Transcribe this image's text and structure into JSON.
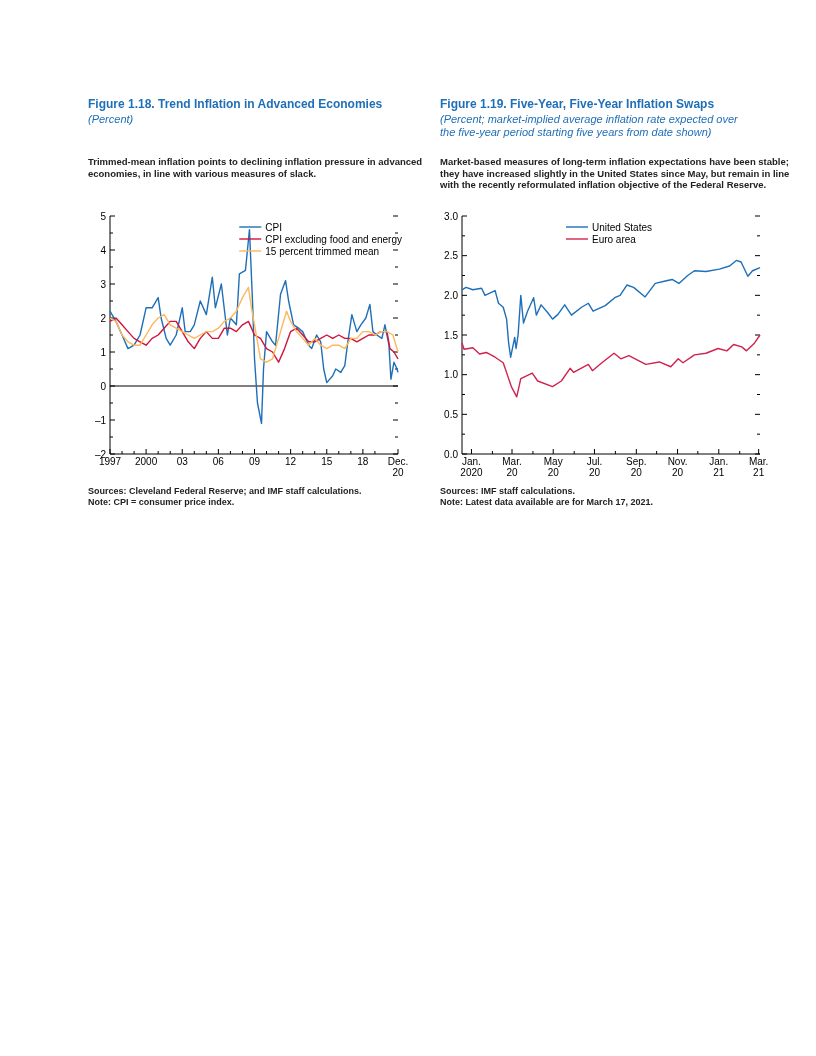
{
  "chart_data": [
    {
      "type": "line",
      "title": "Figure 1.18.  Trend Inflation in Advanced Economies",
      "subtitle": "(Percent)",
      "annotations": [
        "Trimmed-mean inflation points to declining inflation pressure in advanced economies, in line with various measures of slack.",
        "Sources: Cleveland Federal Reserve; and IMF staff calculations.",
        "Note: CPI = consumer price index."
      ],
      "legend": "top right",
      "xlim": [
        "1997-01",
        "2020-12"
      ],
      "xticks": [
        {
          "value": "1997-01",
          "label": "1997"
        },
        {
          "value": "1998-01",
          "label": null
        },
        {
          "value": "1999-01",
          "label": null
        },
        {
          "value": "2000-01",
          "label": "2000"
        },
        {
          "value": "2001-01",
          "label": null
        },
        {
          "value": "2002-01",
          "label": null
        },
        {
          "value": "2003-01",
          "label": "03"
        },
        {
          "value": "2004-01",
          "label": null
        },
        {
          "value": "2005-01",
          "label": null
        },
        {
          "value": "2006-01",
          "label": "06"
        },
        {
          "value": "2007-01",
          "label": null
        },
        {
          "value": "2008-01",
          "label": null
        },
        {
          "value": "2009-01",
          "label": "09"
        },
        {
          "value": "2010-01",
          "label": null
        },
        {
          "value": "2011-01",
          "label": null
        },
        {
          "value": "2012-01",
          "label": "12"
        },
        {
          "value": "2013-01",
          "label": null
        },
        {
          "value": "2014-01",
          "label": null
        },
        {
          "value": "2015-01",
          "label": "15"
        },
        {
          "value": "2016-01",
          "label": null
        },
        {
          "value": "2017-01",
          "label": null
        },
        {
          "value": "2018-01",
          "label": "18"
        },
        {
          "value": "2019-01",
          "label": null
        },
        {
          "value": "2020-12",
          "label": "Dec.\n20"
        }
      ],
      "ylim": [
        -2,
        5
      ],
      "yticks": [
        {
          "value": -2,
          "label": "–2"
        },
        {
          "value": -1.5,
          "label": null
        },
        {
          "value": -1,
          "label": "–1"
        },
        {
          "value": -0.5,
          "label": null
        },
        0,
        {
          "value": 0.5,
          "label": null
        },
        1,
        {
          "value": 1.5,
          "label": null
        },
        2,
        {
          "value": 2.5,
          "label": null
        },
        3,
        {
          "value": 3.5,
          "label": null
        },
        4,
        {
          "value": 4.5,
          "label": null
        },
        5
      ],
      "ref_lines": [
        {
          "axis": "y",
          "value": 0,
          "color": "#000000"
        }
      ],
      "series": [
        {
          "name": "CPI",
          "color": "#1f6fb8",
          "x": [
            "1997-01",
            "1997-07",
            "1998-01",
            "1998-07",
            "1999-01",
            "1999-07",
            "2000-01",
            "2000-07",
            "2001-01",
            "2001-04",
            "2001-09",
            "2002-01",
            "2002-07",
            "2003-01",
            "2003-04",
            "2003-09",
            "2004-01",
            "2004-07",
            "2005-01",
            "2005-07",
            "2005-10",
            "2006-04",
            "2006-10",
            "2007-01",
            "2007-07",
            "2007-10",
            "2008-04",
            "2008-08",
            "2008-11",
            "2009-01",
            "2009-04",
            "2009-08",
            "2009-10",
            "2010-01",
            "2010-07",
            "2010-10",
            "2011-03",
            "2011-08",
            "2011-11",
            "2012-04",
            "2012-09",
            "2013-01",
            "2013-07",
            "2013-10",
            "2014-03",
            "2014-07",
            "2014-10",
            "2015-01",
            "2015-07",
            "2015-10",
            "2016-03",
            "2016-07",
            "2016-10",
            "2017-02",
            "2017-07",
            "2017-11",
            "2018-04",
            "2018-08",
            "2018-11",
            "2019-03",
            "2019-08",
            "2019-11",
            "2020-03",
            "2020-05",
            "2020-08",
            "2020-11",
            "2020-12"
          ],
          "values": [
            2.2,
            1.9,
            1.5,
            1.1,
            1.2,
            1.5,
            2.3,
            2.3,
            2.6,
            2.0,
            1.4,
            1.2,
            1.5,
            2.3,
            1.6,
            1.6,
            1.8,
            2.5,
            2.1,
            3.2,
            2.3,
            3.0,
            1.5,
            2.0,
            1.8,
            3.3,
            3.4,
            4.6,
            2.5,
            0.8,
            -0.5,
            -1.1,
            0.5,
            1.6,
            1.3,
            1.2,
            2.7,
            3.1,
            2.5,
            1.8,
            1.7,
            1.6,
            1.2,
            1.1,
            1.5,
            1.3,
            0.5,
            0.1,
            0.3,
            0.5,
            0.4,
            0.6,
            1.3,
            2.1,
            1.6,
            1.8,
            2.0,
            2.4,
            1.6,
            1.5,
            1.4,
            1.8,
            1.2,
            0.2,
            0.7,
            0.5,
            0.4
          ]
        },
        {
          "name": "CPI excluding food and energy",
          "color": "#d0143c",
          "x": [
            "1997-01",
            "1997-07",
            "1998-01",
            "1998-07",
            "1999-01",
            "1999-07",
            "2000-01",
            "2000-07",
            "2001-01",
            "2001-07",
            "2002-01",
            "2002-07",
            "2003-01",
            "2003-07",
            "2004-01",
            "2004-07",
            "2005-01",
            "2005-07",
            "2006-01",
            "2006-07",
            "2007-01",
            "2007-07",
            "2008-01",
            "2008-07",
            "2009-01",
            "2009-07",
            "2010-01",
            "2010-07",
            "2011-01",
            "2011-07",
            "2012-01",
            "2012-07",
            "2013-01",
            "2013-07",
            "2014-01",
            "2014-07",
            "2015-01",
            "2015-07",
            "2016-01",
            "2016-07",
            "2017-01",
            "2017-07",
            "2018-01",
            "2018-07",
            "2019-01",
            "2019-07",
            "2020-01",
            "2020-04",
            "2020-08",
            "2020-12"
          ],
          "values": [
            1.9,
            2.0,
            1.8,
            1.6,
            1.4,
            1.3,
            1.2,
            1.4,
            1.5,
            1.7,
            1.9,
            1.9,
            1.6,
            1.3,
            1.1,
            1.4,
            1.6,
            1.4,
            1.4,
            1.7,
            1.7,
            1.6,
            1.8,
            1.9,
            1.5,
            1.4,
            1.1,
            1.0,
            0.7,
            1.1,
            1.6,
            1.7,
            1.5,
            1.3,
            1.3,
            1.4,
            1.5,
            1.4,
            1.5,
            1.4,
            1.4,
            1.3,
            1.4,
            1.5,
            1.5,
            1.6,
            1.6,
            1.1,
            1.0,
            0.8
          ]
        },
        {
          "name": "15 percent trimmed mean",
          "color": "#fdb85a",
          "x": [
            "1997-01",
            "1997-07",
            "1998-01",
            "1998-07",
            "1999-01",
            "1999-07",
            "2000-01",
            "2000-07",
            "2001-01",
            "2001-07",
            "2002-01",
            "2002-07",
            "2003-01",
            "2003-07",
            "2004-01",
            "2004-07",
            "2005-01",
            "2005-07",
            "2006-01",
            "2006-07",
            "2007-01",
            "2007-07",
            "2008-01",
            "2008-07",
            "2008-10",
            "2009-01",
            "2009-07",
            "2010-01",
            "2010-07",
            "2011-01",
            "2011-07",
            "2011-09",
            "2012-01",
            "2012-07",
            "2013-01",
            "2013-07",
            "2014-01",
            "2014-07",
            "2015-01",
            "2015-07",
            "2016-01",
            "2016-07",
            "2017-01",
            "2017-07",
            "2018-01",
            "2018-07",
            "2019-01",
            "2019-07",
            "2020-01",
            "2020-07",
            "2020-12"
          ],
          "values": [
            2.0,
            1.9,
            1.5,
            1.3,
            1.2,
            1.2,
            1.5,
            1.8,
            2.0,
            2.1,
            1.8,
            1.7,
            1.6,
            1.5,
            1.4,
            1.5,
            1.6,
            1.6,
            1.7,
            1.9,
            2.0,
            2.2,
            2.6,
            2.9,
            2.3,
            1.8,
            0.8,
            0.7,
            0.8,
            1.4,
            2.0,
            2.2,
            1.9,
            1.6,
            1.4,
            1.2,
            1.4,
            1.2,
            1.1,
            1.2,
            1.2,
            1.1,
            1.4,
            1.4,
            1.6,
            1.6,
            1.5,
            1.6,
            1.6,
            1.5,
            1.0
          ]
        }
      ]
    },
    {
      "type": "line",
      "title": "Figure 1.19.  Five-Year, Five-Year Inflation Swaps",
      "subtitle": "(Percent; market-implied average inflation rate expected over the five-year period starting five years from date shown)",
      "annotations": [
        "Market-based measures of long-term inflation expectations have been stable; they have increased slightly in the United States since May, but remain in line with the recently reformulated inflation objective of the Federal Reserve.",
        "Sources: IMF staff calculations.",
        "Note: Latest data available are for March 17, 2021."
      ],
      "legend": "top",
      "xlim": [
        "2020-01-01",
        "2021-03-17"
      ],
      "xticks": [
        {
          "value": "2020-01-15",
          "label": "Jan.\n2020"
        },
        {
          "value": "2020-02-15",
          "label": null
        },
        {
          "value": "2020-03-15",
          "label": "Mar.\n20"
        },
        {
          "value": "2020-04-15",
          "label": null
        },
        {
          "value": "2020-05-15",
          "label": "May\n20"
        },
        {
          "value": "2020-06-15",
          "label": null
        },
        {
          "value": "2020-07-15",
          "label": "Jul.\n20"
        },
        {
          "value": "2020-08-15",
          "label": null
        },
        {
          "value": "2020-09-15",
          "label": "Sep.\n20"
        },
        {
          "value": "2020-10-15",
          "label": null
        },
        {
          "value": "2020-11-15",
          "label": "Nov.\n20"
        },
        {
          "value": "2020-12-15",
          "label": null
        },
        {
          "value": "2021-01-15",
          "label": "Jan.\n21"
        },
        {
          "value": "2021-02-15",
          "label": null
        },
        {
          "value": "2021-03-15",
          "label": "Mar.\n21"
        }
      ],
      "ylim": [
        0,
        3
      ],
      "yticks": [
        {
          "value": 0,
          "label": "0.0"
        },
        {
          "value": 0.25,
          "label": null
        },
        {
          "value": 0.5,
          "label": "0.5"
        },
        {
          "value": 0.75,
          "label": null
        },
        {
          "value": 1,
          "label": "1.0"
        },
        {
          "value": 1.25,
          "label": null
        },
        {
          "value": 1.5,
          "label": "1.5"
        },
        {
          "value": 1.75,
          "label": null
        },
        {
          "value": 2,
          "label": "2.0"
        },
        {
          "value": 2.25,
          "label": null
        },
        {
          "value": 2.5,
          "label": "2.5"
        },
        {
          "value": 2.75,
          "label": null
        },
        {
          "value": 3,
          "label": "3.0"
        }
      ],
      "series": [
        {
          "name": "United States",
          "color": "#1f6fb8",
          "x": [
            "2020-01-01",
            "2020-01-07",
            "2020-01-17",
            "2020-01-30",
            "2020-02-04",
            "2020-02-19",
            "2020-02-24",
            "2020-03-02",
            "2020-03-07",
            "2020-03-10",
            "2020-03-13",
            "2020-03-19",
            "2020-03-21",
            "2020-03-24",
            "2020-03-28",
            "2020-04-01",
            "2020-04-07",
            "2020-04-16",
            "2020-04-20",
            "2020-04-27",
            "2020-05-07",
            "2020-05-14",
            "2020-05-22",
            "2020-06-01",
            "2020-06-11",
            "2020-06-26",
            "2020-07-06",
            "2020-07-13",
            "2020-07-31",
            "2020-08-14",
            "2020-08-22",
            "2020-09-01",
            "2020-09-11",
            "2020-09-28",
            "2020-10-13",
            "2020-10-28",
            "2020-11-07",
            "2020-11-17",
            "2020-11-30",
            "2020-12-10",
            "2020-12-27",
            "2021-01-16",
            "2021-01-31",
            "2021-02-10",
            "2021-02-17",
            "2021-02-27",
            "2021-03-06",
            "2021-03-17"
          ],
          "values": [
            2.07,
            2.1,
            2.07,
            2.09,
            2.0,
            2.06,
            1.9,
            1.85,
            1.7,
            1.4,
            1.22,
            1.47,
            1.33,
            1.5,
            2.0,
            1.65,
            1.8,
            1.97,
            1.75,
            1.88,
            1.78,
            1.7,
            1.76,
            1.88,
            1.75,
            1.85,
            1.9,
            1.8,
            1.87,
            1.97,
            2.0,
            2.13,
            2.1,
            1.98,
            2.15,
            2.18,
            2.2,
            2.15,
            2.25,
            2.31,
            2.3,
            2.33,
            2.37,
            2.44,
            2.42,
            2.24,
            2.31,
            2.35
          ]
        },
        {
          "name": "Euro area",
          "color": "#d0234e",
          "x": [
            "2020-01-01",
            "2020-01-04",
            "2020-01-17",
            "2020-01-27",
            "2020-02-06",
            "2020-02-19",
            "2020-03-02",
            "2020-03-10",
            "2020-03-14",
            "2020-03-22",
            "2020-03-28",
            "2020-04-14",
            "2020-04-22",
            "2020-05-14",
            "2020-05-27",
            "2020-06-09",
            "2020-06-14",
            "2020-07-06",
            "2020-07-12",
            "2020-07-26",
            "2020-08-13",
            "2020-08-23",
            "2020-09-04",
            "2020-09-29",
            "2020-10-19",
            "2020-11-05",
            "2020-11-16",
            "2020-11-23",
            "2020-12-10",
            "2020-12-27",
            "2021-01-14",
            "2021-01-27",
            "2021-02-06",
            "2021-02-18",
            "2021-02-25",
            "2021-03-09",
            "2021-03-17"
          ],
          "values": [
            1.4,
            1.32,
            1.34,
            1.26,
            1.28,
            1.22,
            1.15,
            0.95,
            0.85,
            0.72,
            0.95,
            1.02,
            0.92,
            0.85,
            0.92,
            1.08,
            1.03,
            1.13,
            1.05,
            1.15,
            1.27,
            1.2,
            1.24,
            1.13,
            1.16,
            1.1,
            1.2,
            1.15,
            1.25,
            1.27,
            1.33,
            1.3,
            1.38,
            1.35,
            1.3,
            1.4,
            1.5
          ]
        }
      ]
    }
  ]
}
